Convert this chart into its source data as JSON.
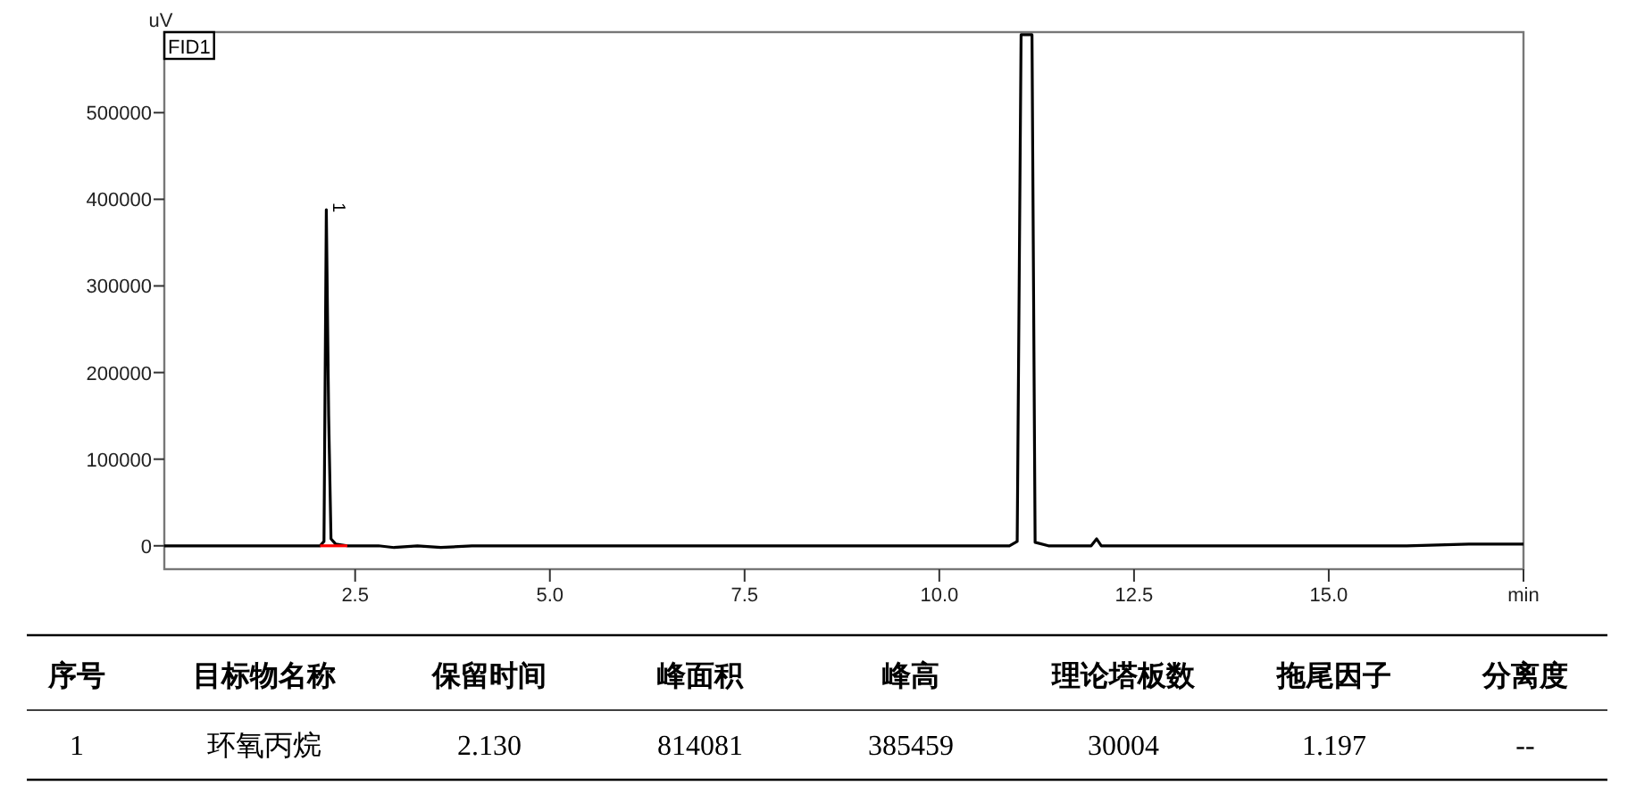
{
  "chart_data": [
    {
      "type": "line",
      "ylabel": "uV",
      "xlim": [
        0.05,
        17.5
      ],
      "ylim": [
        -27000,
        593000
      ],
      "xticks": [
        {
          "value": 2.5,
          "label": "2.5"
        },
        {
          "value": 5,
          "label": "5.0"
        },
        {
          "value": 7.5,
          "label": "7.5"
        },
        {
          "value": 10,
          "label": "10.0"
        },
        {
          "value": 12.5,
          "label": "12.5"
        },
        {
          "value": 15,
          "label": "15.0"
        },
        {
          "value": 17.5,
          "label": "min"
        }
      ],
      "yticks": [
        0,
        100000,
        200000,
        300000,
        400000,
        500000
      ],
      "annotations": [
        "FID1",
        {
          "text": "1",
          "x": 2.13,
          "y": 388000
        }
      ],
      "series": [
        {
          "color": "#000000",
          "x": [
            0.05,
            1.9,
            2.05,
            2.1,
            2.13,
            2.16,
            2.19,
            2.25,
            2.4,
            2.8,
            3.0,
            3.3,
            3.6,
            4.0,
            6.0,
            8.0,
            10.0,
            10.9,
            11.0,
            11.05,
            11.19,
            11.23,
            11.4,
            11.95,
            12.02,
            12.08,
            12.3,
            16.0,
            16.8,
            17.5
          ],
          "values": [
            0,
            0,
            0,
            5000,
            388000,
            150000,
            8000,
            2000,
            0,
            0,
            -2000,
            0,
            -2000,
            0,
            0,
            0,
            0,
            0,
            5000,
            590000,
            590000,
            4000,
            0,
            0,
            8000,
            0,
            0,
            0,
            2000,
            2000
          ]
        },
        {
          "color": "#ff0000",
          "x": [
            2.05,
            2.4
          ],
          "values": [
            0,
            0
          ]
        }
      ]
    },
    {
      "type": "other",
      "annotations": [
        "序号",
        "目标物名称",
        "保留时间",
        "峰面积",
        "峰高",
        "理论塔板数",
        "拖尾因子",
        "分离度",
        "1",
        "环氧丙烷",
        "2.130",
        "814081",
        "385459",
        "30004",
        "1.197",
        "--"
      ]
    }
  ]
}
